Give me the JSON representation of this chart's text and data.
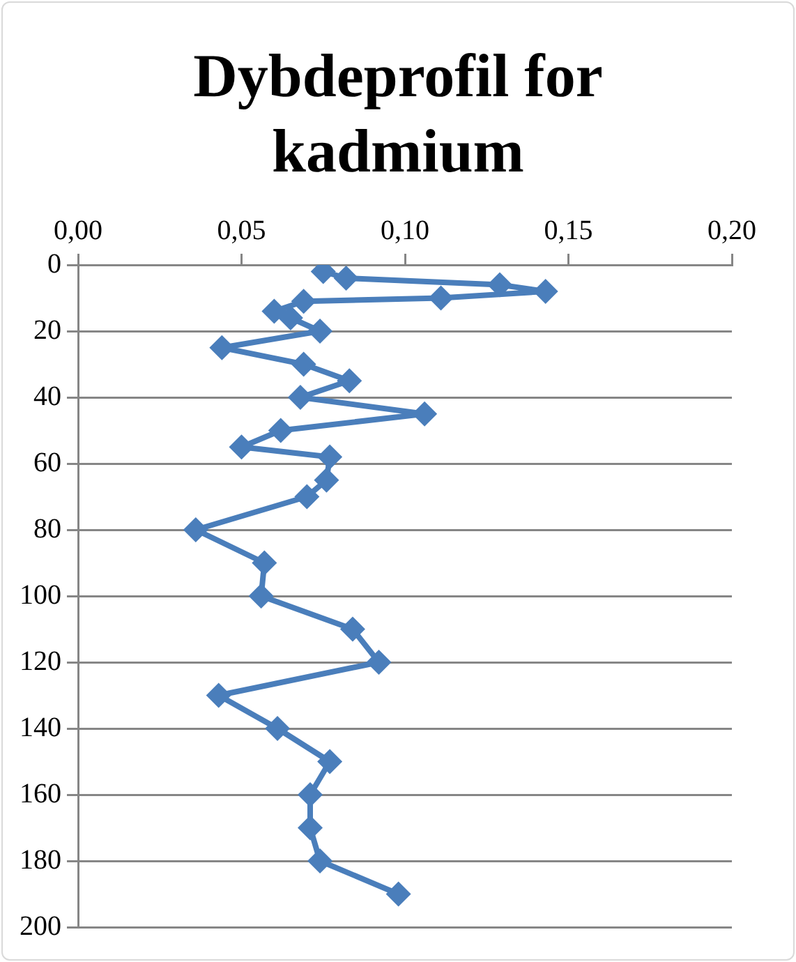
{
  "chart_data": {
    "type": "line",
    "title": "Dybdeprofil for kadmium",
    "x": [
      0.075,
      0.082,
      0.129,
      0.143,
      0.111,
      0.069,
      0.06,
      0.065,
      0.074,
      0.044,
      0.069,
      0.083,
      0.068,
      0.106,
      0.062,
      0.05,
      0.077,
      0.076,
      0.07,
      0.036,
      0.057,
      0.056,
      0.084,
      0.092,
      0.043,
      0.061,
      0.077,
      0.071,
      0.071,
      0.074,
      0.098
    ],
    "values": [
      2,
      4,
      6,
      8,
      10,
      11,
      14,
      16,
      20,
      25,
      30,
      35,
      40,
      45,
      50,
      55,
      58,
      65,
      70,
      80,
      90,
      100,
      110,
      120,
      130,
      140,
      150,
      160,
      170,
      180,
      190
    ],
    "color": "#4a7ebb",
    "marker": "diamond",
    "grid": "y",
    "xlim": [
      0,
      0.2
    ],
    "xticks": [
      {
        "value": 0,
        "label": "0,00"
      },
      {
        "value": 0.05,
        "label": "0,05"
      },
      {
        "value": 0.1,
        "label": "0,10"
      },
      {
        "value": 0.15,
        "label": "0,15"
      },
      {
        "value": 0.2,
        "label": "0,20"
      }
    ],
    "ylim": [
      200,
      0
    ],
    "yticks": [
      0,
      20,
      40,
      60,
      80,
      100,
      120,
      140,
      160,
      180,
      200
    ]
  }
}
